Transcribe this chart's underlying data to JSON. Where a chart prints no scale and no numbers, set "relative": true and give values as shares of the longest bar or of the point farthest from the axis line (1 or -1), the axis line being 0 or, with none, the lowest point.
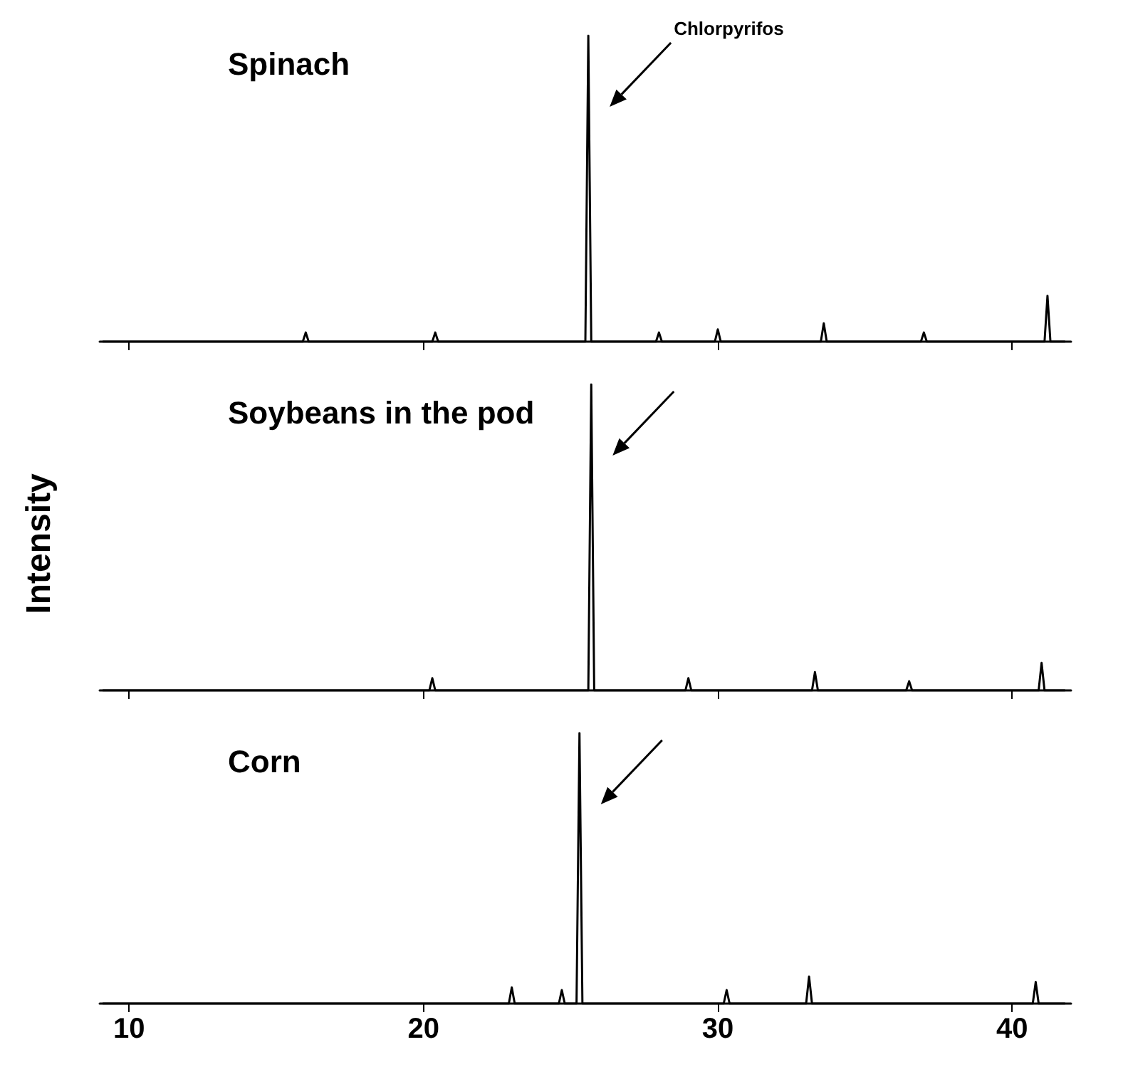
{
  "chart_data": [
    {
      "type": "line",
      "title": "Spinach",
      "ylabel": "Intensity",
      "relative": true,
      "xlim": [
        9,
        42
      ],
      "xticks": [
        10,
        20,
        30,
        40
      ],
      "tick_labels": false,
      "annotations": [
        "Chlorpyrifos"
      ],
      "series": [
        {
          "color": "#000000",
          "x": [
            9.1,
            15.9,
            16,
            16.1,
            20.3,
            20.4,
            20.5,
            25.5,
            25.6,
            25.7,
            27.9,
            28,
            28.1,
            29.9,
            30,
            30.1,
            33.5,
            33.6,
            33.7,
            36.9,
            37,
            37.1,
            41.1,
            41.2,
            41.3,
            41.8
          ],
          "values": [
            0,
            0,
            0.03,
            0,
            0,
            0.03,
            0,
            0,
            1,
            0,
            0,
            0.03,
            0,
            0,
            0.04,
            0,
            0,
            0.06,
            0,
            0,
            0.03,
            0,
            0,
            0.15,
            0,
            0
          ]
        }
      ]
    },
    {
      "type": "line",
      "title": "Soybeans in the pod",
      "relative": true,
      "xlim": [
        9,
        42
      ],
      "xticks": [
        10,
        20,
        30,
        40
      ],
      "tick_labels": false,
      "series": [
        {
          "color": "#000000",
          "x": [
            9.1,
            20.2,
            20.3,
            20.4,
            25.6,
            25.7,
            25.8,
            28.9,
            29,
            29.1,
            33.2,
            33.3,
            33.4,
            36.4,
            36.5,
            36.6,
            40.9,
            41,
            41.1,
            41.8
          ],
          "values": [
            0,
            0,
            0.04,
            0,
            0,
            1,
            0,
            0,
            0.04,
            0,
            0,
            0.06,
            0,
            0,
            0.03,
            0,
            0,
            0.09,
            0,
            0
          ]
        }
      ]
    },
    {
      "type": "line",
      "title": "Corn",
      "relative": true,
      "xlim": [
        9,
        42
      ],
      "xticks": [
        10,
        20,
        30,
        40
      ],
      "series": [
        {
          "color": "#000000",
          "x": [
            9.1,
            22.9,
            23,
            23.1,
            24.6,
            24.7,
            24.8,
            25.2,
            25.3,
            25.4,
            30.2,
            30.3,
            30.4,
            33,
            33.1,
            33.2,
            40.7,
            40.8,
            40.9,
            41.8
          ],
          "values": [
            0,
            0,
            0.06,
            0,
            0,
            0.05,
            0,
            0,
            1,
            0,
            0,
            0.05,
            0,
            0,
            0.1,
            0,
            0,
            0.08,
            0,
            0
          ]
        }
      ]
    }
  ]
}
